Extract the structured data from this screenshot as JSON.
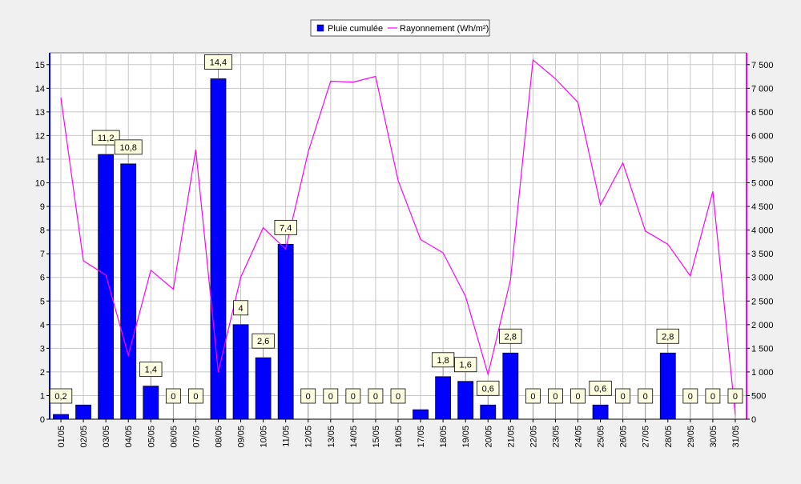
{
  "chart_data": {
    "type": "bar",
    "categories": [
      "01/05",
      "02/05",
      "03/05",
      "04/05",
      "05/05",
      "06/05",
      "07/05",
      "08/05",
      "09/05",
      "10/05",
      "11/05",
      "12/05",
      "13/05",
      "14/05",
      "15/05",
      "16/05",
      "17/05",
      "18/05",
      "19/05",
      "20/05",
      "21/05",
      "22/05",
      "23/05",
      "24/05",
      "25/05",
      "26/05",
      "27/05",
      "28/05",
      "29/05",
      "30/05",
      "31/05"
    ],
    "series": [
      {
        "name": "Pluie cumulée",
        "type": "bar",
        "axis": "left",
        "color": "#0000ff",
        "values": [
          0.2,
          0.6,
          11.2,
          10.8,
          1.4,
          0,
          0,
          14.4,
          4,
          2.6,
          7.4,
          0,
          0,
          0,
          0,
          0,
          0.4,
          1.8,
          1.6,
          0.6,
          2.8,
          0,
          0,
          0,
          0.6,
          0,
          0,
          2.8,
          0,
          0,
          0
        ],
        "labels": [
          "0,2",
          "",
          "11,2",
          "10,8",
          "1,4",
          "0",
          "0",
          "14,4",
          "4",
          "2,6",
          "7,4",
          "0",
          "0",
          "0",
          "0",
          "0",
          "",
          "1,8",
          "1,6",
          "0,6",
          "2,8",
          "0",
          "0",
          "0",
          "0,6",
          "0",
          "0",
          "2,8",
          "0",
          "0",
          "0"
        ]
      },
      {
        "name": "Rayonnement (Wh/m²)",
        "type": "line",
        "axis": "right",
        "color": "#ff00ff",
        "values": [
          6800,
          3350,
          3050,
          1350,
          3150,
          2750,
          5700,
          1000,
          3000,
          4050,
          3600,
          5650,
          7150,
          7130,
          7250,
          5050,
          3800,
          3520,
          2600,
          950,
          2950,
          7600,
          7200,
          6700,
          4530,
          5420,
          3980,
          3700,
          3030,
          4820,
          80
        ]
      }
    ],
    "y_left": {
      "min": 0,
      "max": 15.5,
      "ticks": [
        "0",
        "1",
        "2",
        "3",
        "4",
        "5",
        "6",
        "7",
        "8",
        "9",
        "10",
        "11",
        "12",
        "13",
        "14",
        "15"
      ]
    },
    "y_right": {
      "min": 0,
      "max": 7750,
      "ticks": [
        "0",
        "500",
        "1 000",
        "1 500",
        "2 000",
        "2 500",
        "3 000",
        "3 500",
        "4 000",
        "4 500",
        "5 000",
        "5 500",
        "6 000",
        "6 500",
        "7 000",
        "7 500"
      ]
    },
    "grid": true,
    "legend_position": "top-center",
    "colors": {
      "background": "#f0f0f0",
      "plot_background": "#ffffff",
      "grid": "#c8c8c8",
      "bar": "#0000ff",
      "line": "#ff00ff",
      "label_box": "#ffffe1"
    }
  }
}
